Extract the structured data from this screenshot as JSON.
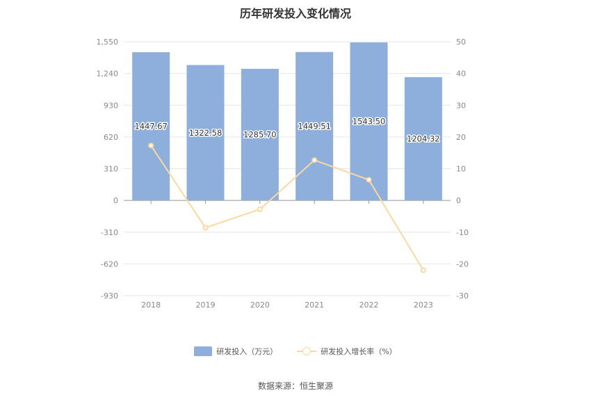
{
  "title": "历年研发投入变化情况",
  "source": "数据来源：恒生聚源",
  "colors": {
    "bar": "#8eaedb",
    "line": "#fad9a1",
    "grid": "#e6e6e6",
    "axis": "#999999"
  },
  "chart_data": {
    "type": "bar",
    "categories": [
      "2018",
      "2019",
      "2020",
      "2021",
      "2022",
      "2023"
    ],
    "series": [
      {
        "name": "研发投入（万元）",
        "type": "bar",
        "axis": "left",
        "values": [
          1447.67,
          1322.58,
          1285.7,
          1449.51,
          1543.5,
          1204.32
        ],
        "labels": [
          "1447.67",
          "1322.58",
          "1285.70",
          "1449.51",
          "1543.50",
          "1204.32"
        ]
      },
      {
        "name": "研发投入增长率（%）",
        "type": "line",
        "axis": "right",
        "values": [
          17.3,
          -8.6,
          -2.8,
          12.7,
          6.5,
          -22.0
        ]
      }
    ],
    "y_left": {
      "min": -930,
      "max": 1550,
      "ticks": [
        -930,
        -620,
        -310,
        0,
        310,
        620,
        930,
        1240,
        1550
      ],
      "tick_labels": [
        "-930",
        "-620",
        "-310",
        "0",
        "310",
        "620",
        "930",
        "1,240",
        "1,550"
      ]
    },
    "y_right": {
      "min": -30,
      "max": 50,
      "ticks": [
        -30,
        -20,
        -10,
        0,
        10,
        20,
        30,
        40,
        50
      ],
      "tick_labels": [
        "-30",
        "-20",
        "-10",
        "0",
        "10",
        "20",
        "30",
        "40",
        "50"
      ]
    },
    "grid": true,
    "legend": "bottom-center"
  }
}
